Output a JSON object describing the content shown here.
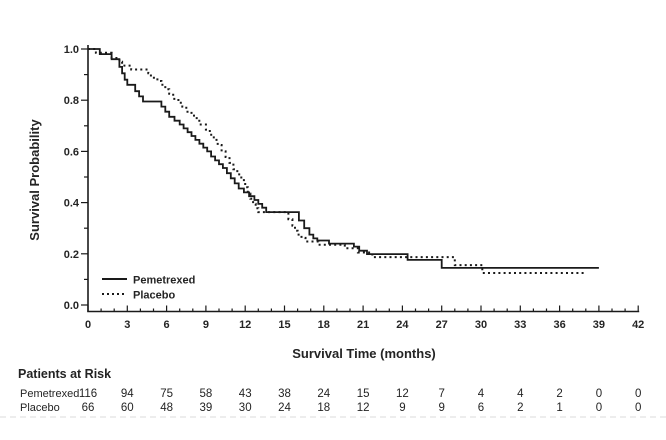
{
  "figure": {
    "background": "#ffffff",
    "line_color": "#1a1a1a",
    "text_color": "#242424",
    "divider_color": "#cccccc"
  },
  "chart_data": {
    "type": "line",
    "subtype": "kaplan-meier-step",
    "title": "",
    "xlabel": "Survival Time (months)",
    "ylabel": "Survival Probability",
    "xlim": [
      0,
      42
    ],
    "ylim": [
      0.0,
      1.0
    ],
    "x_major_ticks": [
      0,
      3,
      6,
      9,
      12,
      15,
      18,
      21,
      24,
      27,
      30,
      33,
      36,
      39,
      42
    ],
    "x_minor_tick_interval": 1,
    "y_major_ticks": [
      0.0,
      0.2,
      0.4,
      0.6,
      0.8,
      1.0
    ],
    "y_major_tick_labels": [
      "0.0",
      "0.2",
      "0.4",
      "0.6",
      "0.8",
      "1.0"
    ],
    "y_minor_tick_interval": 0.1,
    "grid": "off",
    "legend": {
      "position": "inside-bottom-left",
      "entries": [
        {
          "label": "Pemetrexed",
          "line_style": "solid"
        },
        {
          "label": "Placebo",
          "line_style": "dotted"
        }
      ]
    },
    "series": [
      {
        "name": "Pemetrexed",
        "line_style": "solid",
        "color": "#1a1a1a",
        "steps": [
          [
            0,
            1.0
          ],
          [
            0.9,
            0.98
          ],
          [
            1.8,
            0.96
          ],
          [
            2.4,
            0.93
          ],
          [
            2.6,
            0.905
          ],
          [
            2.8,
            0.88
          ],
          [
            3.0,
            0.86
          ],
          [
            3.6,
            0.835
          ],
          [
            3.9,
            0.815
          ],
          [
            4.2,
            0.795
          ],
          [
            5.6,
            0.775
          ],
          [
            5.9,
            0.755
          ],
          [
            6.2,
            0.735
          ],
          [
            6.6,
            0.72
          ],
          [
            7.0,
            0.705
          ],
          [
            7.3,
            0.69
          ],
          [
            7.6,
            0.675
          ],
          [
            7.9,
            0.66
          ],
          [
            8.2,
            0.645
          ],
          [
            8.5,
            0.63
          ],
          [
            8.8,
            0.615
          ],
          [
            9.1,
            0.6
          ],
          [
            9.4,
            0.58
          ],
          [
            9.7,
            0.565
          ],
          [
            10.0,
            0.55
          ],
          [
            10.3,
            0.535
          ],
          [
            10.6,
            0.515
          ],
          [
            10.9,
            0.495
          ],
          [
            11.2,
            0.475
          ],
          [
            11.5,
            0.455
          ],
          [
            11.9,
            0.44
          ],
          [
            12.3,
            0.425
          ],
          [
            12.7,
            0.41
          ],
          [
            13.0,
            0.395
          ],
          [
            13.3,
            0.38
          ],
          [
            13.6,
            0.363
          ],
          [
            16.1,
            0.33
          ],
          [
            16.5,
            0.3
          ],
          [
            16.9,
            0.275
          ],
          [
            17.2,
            0.26
          ],
          [
            17.5,
            0.252
          ],
          [
            18.4,
            0.24
          ],
          [
            20.3,
            0.228
          ],
          [
            20.7,
            0.212
          ],
          [
            21.3,
            0.199
          ],
          [
            24.4,
            0.176
          ],
          [
            27.0,
            0.145
          ],
          [
            39.0,
            0.145
          ]
        ]
      },
      {
        "name": "Placebo",
        "line_style": "dotted",
        "color": "#1a1a1a",
        "steps": [
          [
            0,
            1.0
          ],
          [
            0.6,
            0.985
          ],
          [
            1.8,
            0.965
          ],
          [
            2.4,
            0.95
          ],
          [
            2.6,
            0.935
          ],
          [
            3.3,
            0.92
          ],
          [
            4.6,
            0.905
          ],
          [
            4.8,
            0.888
          ],
          [
            5.3,
            0.875
          ],
          [
            5.6,
            0.86
          ],
          [
            5.9,
            0.843
          ],
          [
            6.2,
            0.825
          ],
          [
            6.5,
            0.805
          ],
          [
            6.9,
            0.79
          ],
          [
            7.2,
            0.775
          ],
          [
            7.5,
            0.755
          ],
          [
            7.9,
            0.74
          ],
          [
            8.3,
            0.72
          ],
          [
            8.6,
            0.705
          ],
          [
            9.0,
            0.685
          ],
          [
            9.3,
            0.665
          ],
          [
            9.6,
            0.645
          ],
          [
            9.9,
            0.625
          ],
          [
            10.2,
            0.6
          ],
          [
            10.5,
            0.578
          ],
          [
            10.8,
            0.555
          ],
          [
            11.1,
            0.53
          ],
          [
            11.4,
            0.51
          ],
          [
            11.7,
            0.488
          ],
          [
            12.0,
            0.46
          ],
          [
            12.2,
            0.435
          ],
          [
            12.4,
            0.415
          ],
          [
            12.6,
            0.395
          ],
          [
            12.8,
            0.378
          ],
          [
            13.0,
            0.363
          ],
          [
            15.3,
            0.335
          ],
          [
            15.6,
            0.31
          ],
          [
            15.8,
            0.29
          ],
          [
            16.0,
            0.275
          ],
          [
            16.3,
            0.262
          ],
          [
            16.6,
            0.248
          ],
          [
            17.6,
            0.235
          ],
          [
            19.6,
            0.222
          ],
          [
            20.6,
            0.205
          ],
          [
            21.7,
            0.187
          ],
          [
            28.0,
            0.156
          ],
          [
            30.1,
            0.125
          ],
          [
            38.0,
            0.125
          ]
        ]
      }
    ]
  },
  "risk_table": {
    "title": "Patients at Risk",
    "time_points": [
      0,
      3,
      6,
      9,
      12,
      15,
      18,
      21,
      24,
      27,
      30,
      33,
      36,
      39,
      42
    ],
    "rows": [
      {
        "label": "Pemetrexed",
        "values": [
          116,
          94,
          75,
          58,
          43,
          38,
          24,
          15,
          12,
          7,
          4,
          4,
          2,
          0,
          0
        ]
      },
      {
        "label": "Placebo",
        "values": [
          66,
          60,
          48,
          39,
          30,
          24,
          18,
          12,
          9,
          9,
          6,
          2,
          1,
          0,
          0
        ]
      }
    ]
  }
}
